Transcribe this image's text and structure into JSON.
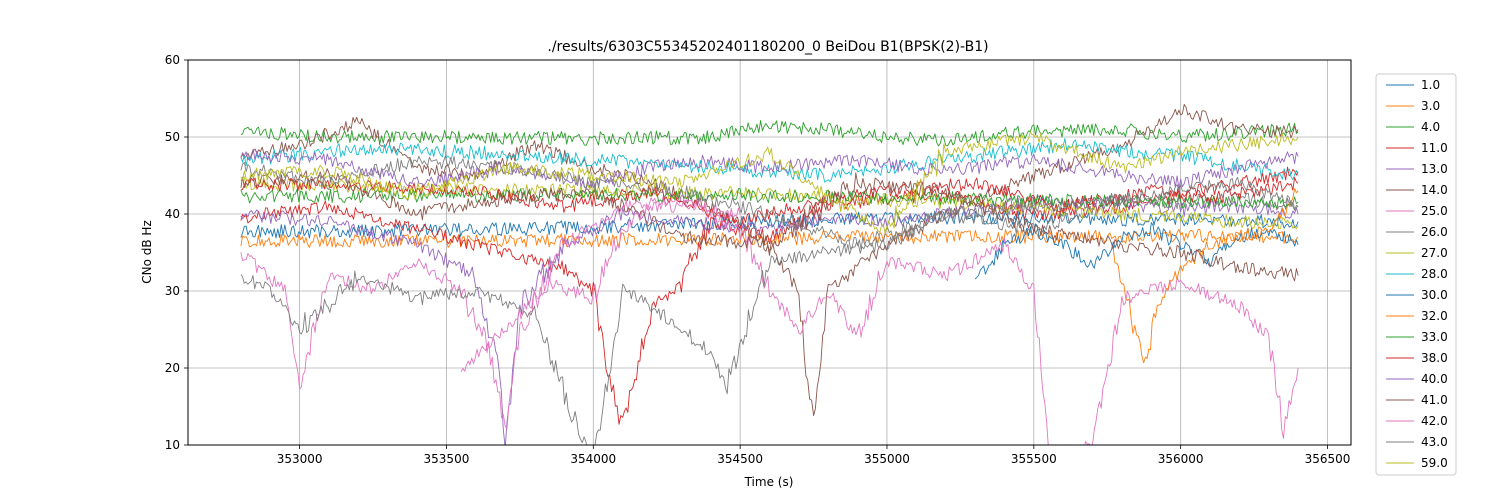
{
  "chart_data": {
    "type": "line",
    "title": "./results/6303C55345202401180200_0 BeiDou B1(BPSK(2)-B1)",
    "xlabel": "Time (s)",
    "ylabel": "CNo dB Hz",
    "xlim": [
      352620,
      356580
    ],
    "ylim": [
      10,
      60
    ],
    "x_ticks": [
      353000,
      353500,
      354000,
      354500,
      355000,
      355500,
      356000,
      356500
    ],
    "x_tick_labels": [
      "353000",
      "353500",
      "354000",
      "354500",
      "355000",
      "355500",
      "356000",
      "356500"
    ],
    "y_ticks": [
      10,
      20,
      30,
      40,
      50,
      60
    ],
    "y_tick_labels": [
      "10",
      "20",
      "30",
      "40",
      "50",
      "60"
    ],
    "grid": true,
    "legend_position": "outside-right",
    "series": [
      {
        "name": "1.0",
        "color": "#1f77b4",
        "x": [
          352800,
          353500,
          354000,
          354500,
          355000,
          355500,
          356000,
          356400
        ],
        "y": [
          37.7,
          37.9,
          38.3,
          38.9,
          39.5,
          39.5,
          39.2,
          39.0
        ]
      },
      {
        "name": "3.0",
        "color": "#ff7f0e",
        "x": [
          352800,
          353500,
          354000,
          354500,
          355000,
          355500,
          356000,
          356400
        ],
        "y": [
          36.5,
          36.5,
          36.6,
          36.8,
          37.0,
          37.1,
          37.1,
          37.0
        ]
      },
      {
        "name": "4.0",
        "color": "#2ca02c",
        "x": [
          352800,
          353100,
          353500,
          354000,
          354400,
          354600,
          354800,
          355000,
          355200,
          355500,
          355800,
          356000,
          356200,
          356400
        ],
        "y": [
          50.8,
          50.0,
          50.0,
          49.8,
          50.0,
          51.5,
          51.0,
          50.0,
          49.5,
          50.8,
          51.0,
          50.0,
          50.5,
          51.0
        ]
      },
      {
        "name": "11.0",
        "color": "#d62728",
        "x": [
          352800,
          353100,
          353400,
          353700,
          353900,
          354000,
          354050,
          354100,
          354200,
          354300,
          354400,
          354600,
          354800,
          355000,
          355200,
          355500,
          355800,
          356000,
          356200,
          356400
        ],
        "y": [
          39.5,
          41.0,
          38.0,
          35.0,
          33.0,
          30.0,
          20.0,
          12.0,
          28.0,
          31.0,
          39.0,
          37.0,
          41.0,
          42.0,
          42.5,
          40.0,
          41.0,
          42.5,
          44.0,
          45.5
        ]
      },
      {
        "name": "13.0",
        "color": "#9467bd",
        "x": [
          352800,
          353100,
          353400,
          353600,
          353680,
          353700,
          353750,
          353900,
          354100,
          354300,
          354600,
          354800,
          355000,
          355200,
          355500,
          355800,
          356000,
          356200,
          356400
        ],
        "y": [
          40.0,
          39.0,
          36.0,
          32.0,
          20.0,
          10.0,
          28.0,
          36.0,
          40.0,
          39.0,
          38.0,
          39.5,
          39.0,
          40.0,
          41.5,
          41.5,
          40.5,
          41.0,
          40.0
        ]
      },
      {
        "name": "14.0",
        "color": "#8c564b",
        "x": [
          352800,
          353000,
          353200,
          353400,
          353600,
          353800,
          354000,
          354200,
          354400,
          354600,
          354700,
          354730,
          354750,
          354800,
          355000,
          355200,
          355500,
          355800,
          356000,
          356200,
          356400
        ],
        "y": [
          47.5,
          49.0,
          52.0,
          46.0,
          45.0,
          49.0,
          46.0,
          44.0,
          41.0,
          36.0,
          30.0,
          18.0,
          14.0,
          30.0,
          36.0,
          40.0,
          45.0,
          49.0,
          53.5,
          51.0,
          50.5
        ]
      },
      {
        "name": "25.0",
        "color": "#e377c2",
        "x": [
          352800,
          352950,
          353000,
          353100,
          353250,
          353400,
          353550,
          353650,
          353700,
          353750,
          353900,
          354100,
          354300,
          354500,
          354600,
          354700,
          354800,
          354900,
          355000,
          355200,
          355400,
          355500,
          355550,
          355600,
          355700,
          355800,
          356000,
          356200,
          356300,
          356350,
          356400
        ],
        "y": [
          35.0,
          30.0,
          18.0,
          32.0,
          30.0,
          34.0,
          30.0,
          22.0,
          12.0,
          25.0,
          36.0,
          41.0,
          42.0,
          38.0,
          30.0,
          25.0,
          30.0,
          24.0,
          34.0,
          32.0,
          36.0,
          30.0,
          10.0,
          9.0,
          10.0,
          29.0,
          31.0,
          28.0,
          24.0,
          12.0,
          20.0
        ]
      },
      {
        "name": "26.0",
        "color": "#7f7f7f",
        "x": [
          352800,
          352900,
          353000,
          353200,
          353400,
          353600,
          353800,
          353950,
          354000,
          354100,
          354200,
          354300,
          354400,
          354450,
          354600,
          354800,
          355000,
          355200,
          355500,
          355800,
          356000,
          356200,
          356400
        ],
        "y": [
          32.0,
          30.0,
          25.0,
          32.0,
          29.0,
          30.0,
          27.0,
          12.0,
          8.0,
          30.0,
          28.0,
          25.0,
          22.0,
          17.5,
          34.0,
          35.0,
          36.0,
          40.0,
          38.0,
          42.0,
          41.5,
          42.0,
          41.0
        ]
      },
      {
        "name": "27.0",
        "color": "#bcbd22",
        "x": [
          352800,
          353200,
          353600,
          354000,
          354400,
          354800,
          355000,
          355300,
          355600,
          356000,
          356400
        ],
        "y": [
          44.0,
          43.5,
          43.2,
          43.0,
          42.8,
          42.3,
          41.8,
          41.3,
          40.5,
          39.5,
          38.5
        ]
      },
      {
        "name": "28.0",
        "color": "#17becf",
        "x": [
          352800,
          353200,
          353600,
          354000,
          354400,
          354800,
          355200,
          355600,
          356000,
          356400
        ],
        "y": [
          47.0,
          48.5,
          48.0,
          47.0,
          46.0,
          45.0,
          47.0,
          49.0,
          47.5,
          45.0
        ]
      },
      {
        "name": "30.0",
        "color": "#1f77b4",
        "x": [
          355300,
          355400,
          355500,
          355600,
          355700,
          355800,
          355900,
          356000,
          356100,
          356200,
          356300,
          356400
        ],
        "y": [
          31.0,
          36.0,
          38.0,
          36.0,
          33.0,
          37.0,
          38.0,
          36.0,
          34.0,
          37.0,
          38.0,
          36.0
        ]
      },
      {
        "name": "32.0",
        "color": "#ff7f0e",
        "x": [
          355770,
          355800,
          355850,
          355880,
          355920,
          356000,
          356100,
          356200,
          356300,
          356400
        ],
        "y": [
          35.0,
          31.0,
          24.0,
          20.5,
          28.0,
          33.0,
          36.0,
          37.0,
          38.0,
          43.0
        ]
      },
      {
        "name": "33.0",
        "color": "#2ca02c",
        "x": [
          352800,
          353500,
          354000,
          354500,
          355000,
          355500,
          356000,
          356400
        ],
        "y": [
          42.3,
          42.4,
          42.5,
          42.4,
          42.2,
          41.8,
          41.7,
          41.5
        ]
      },
      {
        "name": "38.0",
        "color": "#d62728",
        "x": [
          352800,
          353000,
          353300,
          353600,
          353900,
          354200,
          354500,
          354700,
          355000,
          355300,
          355600,
          355900,
          356100,
          356400
        ],
        "y": [
          44.0,
          43.8,
          43.5,
          43.0,
          41.0,
          43.0,
          39.0,
          41.0,
          43.0,
          44.0,
          41.0,
          43.0,
          42.0,
          44.0
        ]
      },
      {
        "name": "40.0",
        "color": "#9467bd",
        "x": [
          352800,
          353100,
          353400,
          353700,
          354000,
          354300,
          354600,
          354900,
          355200,
          355500,
          355800,
          356000,
          356200,
          356400
        ],
        "y": [
          48.0,
          47.0,
          44.0,
          46.0,
          44.0,
          47.0,
          46.0,
          47.0,
          45.5,
          47.0,
          45.0,
          44.0,
          46.0,
          47.5
        ]
      },
      {
        "name": "41.0",
        "color": "#8c564b",
        "x": [
          352800,
          353100,
          353400,
          353700,
          354000,
          354300,
          354600,
          354900,
          355200,
          355500,
          355800,
          356000,
          356200,
          356400
        ],
        "y": [
          44.0,
          45.0,
          40.0,
          42.0,
          43.0,
          37.0,
          36.0,
          44.0,
          43.0,
          38.0,
          36.0,
          35.0,
          33.0,
          32.0
        ]
      },
      {
        "name": "42.0",
        "color": "#e377c2",
        "x": [
          353550,
          353700,
          353850,
          354000,
          354100,
          354200,
          354350,
          354500
        ],
        "y": [
          20.0,
          25.0,
          31.0,
          29.0,
          38.0,
          41.0,
          41.0,
          40.0
        ]
      },
      {
        "name": "43.0",
        "color": "#7f7f7f",
        "x": [
          352800,
          353100,
          353400,
          353700,
          354000,
          354300,
          354600,
          354900,
          355200,
          355500,
          355800,
          356000,
          356200,
          356400
        ],
        "y": [
          46.0,
          44.0,
          47.0,
          46.0,
          44.0,
          43.0,
          40.0,
          36.0,
          40.0,
          41.0,
          42.0,
          43.0,
          44.0,
          41.0
        ]
      },
      {
        "name": "59.0",
        "color": "#bcbd22",
        "x": [
          352800,
          353100,
          353400,
          353700,
          354000,
          354300,
          354600,
          354800,
          355000,
          355200,
          355500,
          355800,
          356000,
          356200,
          356400
        ],
        "y": [
          45.0,
          45.5,
          42.5,
          46.0,
          45.0,
          44.0,
          48.0,
          42.0,
          38.0,
          48.0,
          50.0,
          46.0,
          48.0,
          49.0,
          50.0
        ]
      }
    ]
  }
}
